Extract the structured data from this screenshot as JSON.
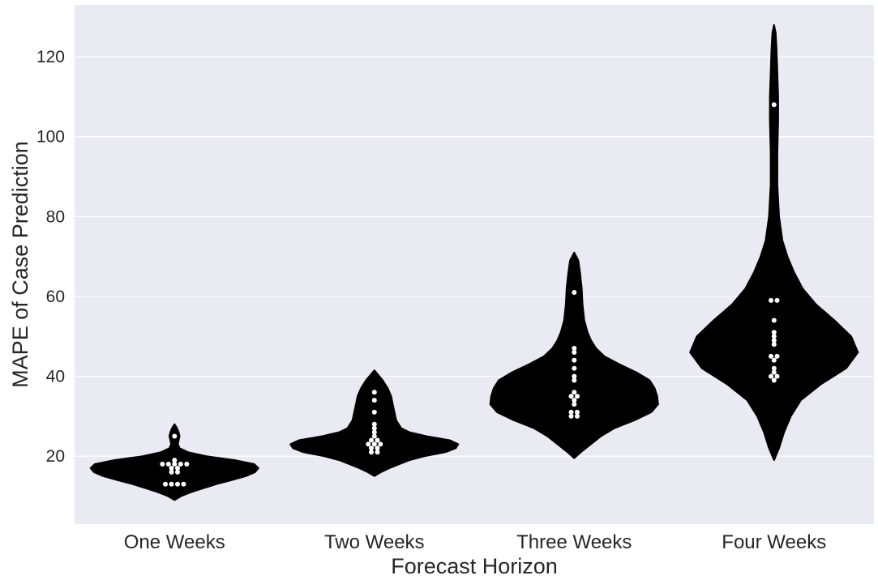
{
  "chart_data": {
    "type": "violin",
    "title": "",
    "xlabel": "Forecast Horizon",
    "ylabel": "MAPE of Case Prediction",
    "categories": [
      "One Weeks",
      "Two Weeks",
      "Three Weeks",
      "Four Weeks"
    ],
    "ylim": [
      3,
      133
    ],
    "yticks": [
      20,
      40,
      60,
      80,
      100,
      120
    ],
    "grid": true,
    "legend": "none",
    "colors": {
      "background": "#eaeaf2",
      "grid": "#ffffff",
      "violin": "#000000",
      "points": "#ffffff",
      "text": "#262626"
    },
    "series": [
      {
        "category": "One Weeks",
        "points": [
          13,
          13,
          13,
          13,
          16,
          16,
          17,
          17,
          18,
          18,
          18,
          18,
          18,
          19,
          25
        ],
        "density_profile": [
          {
            "y": 9,
            "w": 0.0
          },
          {
            "y": 10,
            "w": 0.08
          },
          {
            "y": 11,
            "w": 0.2
          },
          {
            "y": 12,
            "w": 0.35
          },
          {
            "y": 13,
            "w": 0.5
          },
          {
            "y": 14,
            "w": 0.68
          },
          {
            "y": 15,
            "w": 0.85
          },
          {
            "y": 16,
            "w": 0.96
          },
          {
            "y": 17,
            "w": 1.0
          },
          {
            "y": 18,
            "w": 0.95
          },
          {
            "y": 19,
            "w": 0.72
          },
          {
            "y": 20,
            "w": 0.38
          },
          {
            "y": 21,
            "w": 0.16
          },
          {
            "y": 22,
            "w": 0.06
          },
          {
            "y": 23,
            "w": 0.04
          },
          {
            "y": 24,
            "w": 0.05
          },
          {
            "y": 25,
            "w": 0.06
          },
          {
            "y": 26,
            "w": 0.05
          },
          {
            "y": 27,
            "w": 0.03
          },
          {
            "y": 28,
            "w": 0.0
          }
        ]
      },
      {
        "category": "Two Weeks",
        "points": [
          21,
          21,
          22,
          22,
          23,
          23,
          23,
          24,
          24,
          25,
          26,
          27,
          28,
          31,
          34,
          36
        ],
        "density_profile": [
          {
            "y": 15,
            "w": 0.0
          },
          {
            "y": 16,
            "w": 0.08
          },
          {
            "y": 17,
            "w": 0.18
          },
          {
            "y": 18,
            "w": 0.3
          },
          {
            "y": 19,
            "w": 0.42
          },
          {
            "y": 20,
            "w": 0.6
          },
          {
            "y": 21,
            "w": 0.85
          },
          {
            "y": 22,
            "w": 0.97
          },
          {
            "y": 23,
            "w": 1.0
          },
          {
            "y": 24,
            "w": 0.9
          },
          {
            "y": 25,
            "w": 0.62
          },
          {
            "y": 26,
            "w": 0.42
          },
          {
            "y": 27,
            "w": 0.32
          },
          {
            "y": 29,
            "w": 0.26
          },
          {
            "y": 31,
            "w": 0.24
          },
          {
            "y": 33,
            "w": 0.22
          },
          {
            "y": 35,
            "w": 0.2
          },
          {
            "y": 37,
            "w": 0.16
          },
          {
            "y": 39,
            "w": 0.1
          },
          {
            "y": 40,
            "w": 0.06
          },
          {
            "y": 41.5,
            "w": 0.0
          }
        ]
      },
      {
        "category": "Three Weeks",
        "points": [
          30,
          30,
          31,
          31,
          33,
          34,
          35,
          35,
          36,
          39,
          40,
          42,
          44,
          46,
          47,
          61
        ],
        "density_profile": [
          {
            "y": 19.5,
            "w": 0.0
          },
          {
            "y": 21,
            "w": 0.08
          },
          {
            "y": 23,
            "w": 0.2
          },
          {
            "y": 25,
            "w": 0.32
          },
          {
            "y": 27,
            "w": 0.48
          },
          {
            "y": 29,
            "w": 0.72
          },
          {
            "y": 31,
            "w": 0.92
          },
          {
            "y": 33,
            "w": 1.0
          },
          {
            "y": 35,
            "w": 0.99
          },
          {
            "y": 37,
            "w": 0.96
          },
          {
            "y": 39,
            "w": 0.9
          },
          {
            "y": 41,
            "w": 0.74
          },
          {
            "y": 43,
            "w": 0.54
          },
          {
            "y": 45,
            "w": 0.36
          },
          {
            "y": 47,
            "w": 0.26
          },
          {
            "y": 49,
            "w": 0.2
          },
          {
            "y": 51,
            "w": 0.16
          },
          {
            "y": 54,
            "w": 0.12
          },
          {
            "y": 58,
            "w": 0.1
          },
          {
            "y": 62,
            "w": 0.09
          },
          {
            "y": 66,
            "w": 0.07
          },
          {
            "y": 69,
            "w": 0.05
          },
          {
            "y": 71,
            "w": 0.0
          }
        ]
      },
      {
        "category": "Four Weeks",
        "points": [
          39,
          40,
          40,
          41,
          42,
          44,
          45,
          45,
          48,
          49,
          50,
          51,
          54,
          59,
          59,
          108
        ],
        "density_profile": [
          {
            "y": 19,
            "w": 0.0
          },
          {
            "y": 22,
            "w": 0.06
          },
          {
            "y": 26,
            "w": 0.12
          },
          {
            "y": 30,
            "w": 0.2
          },
          {
            "y": 34,
            "w": 0.32
          },
          {
            "y": 38,
            "w": 0.56
          },
          {
            "y": 42,
            "w": 0.86
          },
          {
            "y": 46,
            "w": 1.0
          },
          {
            "y": 50,
            "w": 0.92
          },
          {
            "y": 54,
            "w": 0.72
          },
          {
            "y": 58,
            "w": 0.5
          },
          {
            "y": 62,
            "w": 0.34
          },
          {
            "y": 66,
            "w": 0.24
          },
          {
            "y": 70,
            "w": 0.16
          },
          {
            "y": 74,
            "w": 0.1
          },
          {
            "y": 80,
            "w": 0.06
          },
          {
            "y": 88,
            "w": 0.04
          },
          {
            "y": 96,
            "w": 0.04
          },
          {
            "y": 104,
            "w": 0.05
          },
          {
            "y": 110,
            "w": 0.05
          },
          {
            "y": 116,
            "w": 0.04
          },
          {
            "y": 122,
            "w": 0.03
          },
          {
            "y": 126,
            "w": 0.02
          },
          {
            "y": 128,
            "w": 0.0
          }
        ]
      }
    ]
  }
}
